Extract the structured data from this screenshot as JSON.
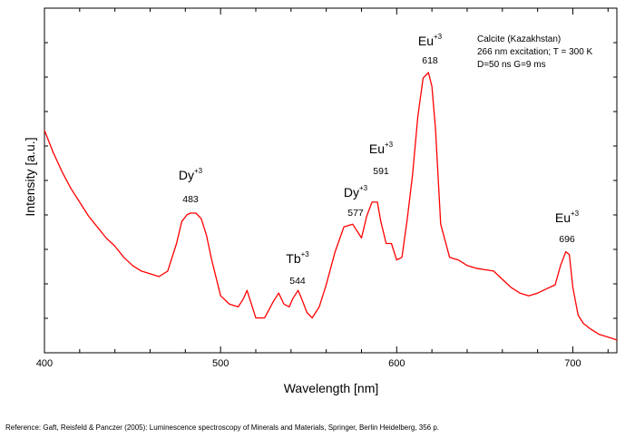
{
  "chart_data": {
    "type": "line",
    "title": "",
    "xlabel": "Wavelength [nm]",
    "ylabel": "Intensity [a.u.]",
    "xlim": [
      400,
      725
    ],
    "ylim": [
      0,
      100
    ],
    "y_tick_labels_shown": false,
    "x_ticks": [
      "400",
      "500",
      "600",
      "700"
    ],
    "x_tick_values": [
      400,
      500,
      600,
      700
    ],
    "grid": false,
    "series": [
      {
        "color": "#ff0000",
        "x": [
          400,
          405,
          410,
          415,
          420,
          425,
          430,
          435,
          440,
          445,
          450,
          455,
          460,
          465,
          470,
          475,
          478,
          481,
          483,
          486,
          489,
          492,
          495,
          500,
          505,
          510,
          513,
          515,
          517,
          520,
          525,
          530,
          533,
          536,
          539,
          541,
          544,
          546,
          549,
          552,
          556,
          560,
          565,
          570,
          575,
          577,
          580,
          583,
          586,
          589,
          591,
          594,
          597,
          600,
          603,
          606,
          609,
          612,
          615,
          618,
          620,
          622,
          625,
          630,
          635,
          640,
          645,
          650,
          655,
          660,
          665,
          670,
          675,
          680,
          685,
          690,
          693,
          696,
          698,
          700,
          703,
          706,
          710,
          715,
          720,
          725
        ],
        "y": [
          79,
          71,
          64,
          58,
          53,
          48,
          44,
          40,
          37,
          33,
          30,
          28,
          27,
          26,
          28,
          38,
          46,
          48.5,
          49,
          49,
          47,
          41,
          32,
          19,
          16,
          15,
          18,
          21,
          17,
          11,
          11,
          17,
          20,
          16,
          15,
          18,
          21,
          18,
          13,
          11,
          15,
          23,
          35,
          44,
          45,
          43,
          40,
          48,
          53,
          53,
          46,
          38,
          38,
          32,
          33,
          47,
          63,
          84,
          98,
          100,
          95,
          80,
          45,
          33,
          32,
          30,
          29,
          28.5,
          28,
          25,
          22,
          20,
          19,
          20,
          21.5,
          23,
          30,
          35,
          34,
          22,
          12,
          9,
          7,
          5,
          4,
          3
        ]
      }
    ],
    "annotations": [
      {
        "ion": "Dy",
        "charge": "+3",
        "wavelength": "483"
      },
      {
        "ion": "Tb",
        "charge": "+3",
        "wavelength": "544"
      },
      {
        "ion": "Dy",
        "charge": "+3",
        "wavelength": "577"
      },
      {
        "ion": "Eu",
        "charge": "+3",
        "wavelength": "591"
      },
      {
        "ion": "Eu",
        "charge": "+3",
        "wavelength": "618"
      },
      {
        "ion": "Eu",
        "charge": "+3",
        "wavelength": "696"
      }
    ],
    "note_lines": [
      "Calcite (Kazakhstan)",
      "266 nm excitation; T = 300 K",
      "D=50 ns G=9 ms"
    ],
    "line_color": "#ff0000"
  },
  "reference": "Reference: Gaft, Reisfeld & Panczer (2005): Luminescence spectroscopy of Minerals and Materials, Springer, Berlin Heidelberg, 356 p."
}
